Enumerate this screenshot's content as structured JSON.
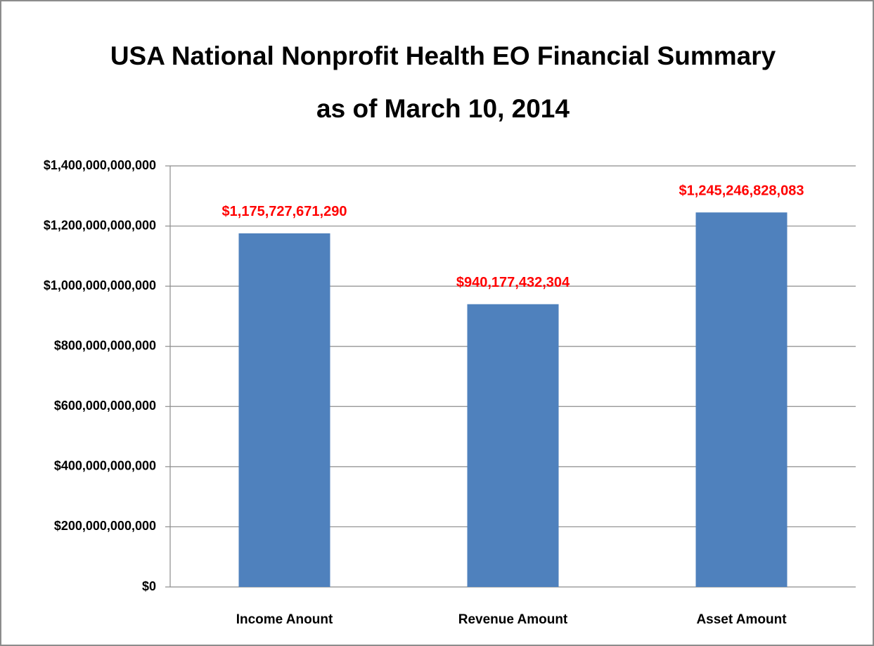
{
  "chart_data": {
    "type": "bar",
    "title": [
      "USA National Nonprofit Health EO Financial Summary",
      "as of March 10, 2014"
    ],
    "categories": [
      "Income Anount",
      "Revenue Amount",
      "Asset Amount"
    ],
    "values": [
      1175727671290,
      940177432304,
      1245246828083
    ],
    "value_labels": [
      "$1,175,727,671,290",
      "$940,177,432,304",
      "$1,245,246,828,083"
    ],
    "color": "#4f81bd",
    "value_label_color": "#ff0000",
    "ylim": [
      0,
      1400000000000
    ],
    "yticks": [
      {
        "value": 0,
        "label": "$0"
      },
      {
        "value": 200000000000,
        "label": "$200,000,000,000"
      },
      {
        "value": 400000000000,
        "label": "$400,000,000,000"
      },
      {
        "value": 600000000000,
        "label": "$600,000,000,000"
      },
      {
        "value": 800000000000,
        "label": "$800,000,000,000"
      },
      {
        "value": 1000000000000,
        "label": "$1,000,000,000,000"
      },
      {
        "value": 1200000000000,
        "label": "$1,200,000,000,000"
      },
      {
        "value": 1400000000000,
        "label": "$1,400,000,000,000"
      }
    ],
    "grid": true
  }
}
